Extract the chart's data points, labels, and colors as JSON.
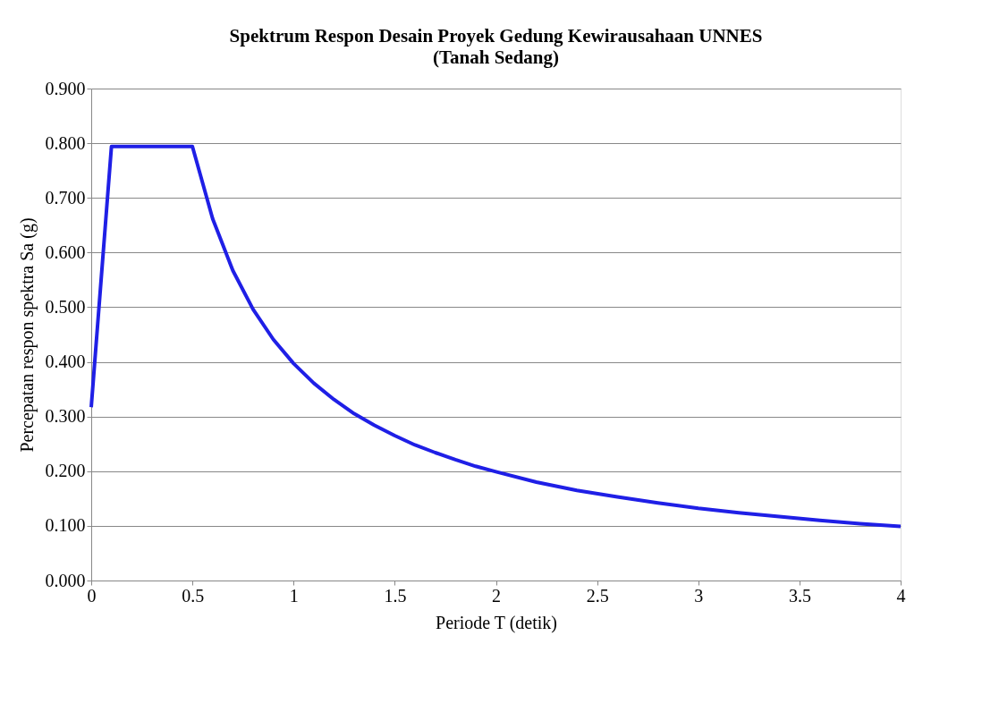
{
  "chart_data": {
    "type": "line",
    "title": "Spektrum Respon Desain Proyek Gedung Kewirausahaan UNNES",
    "subtitle": "(Tanah Sedang)",
    "xlabel": "Periode  T (detik)",
    "ylabel": "Percepatan respon spektra Sa (g)",
    "x": [
      0,
      0.1,
      0.5,
      0.6,
      0.7,
      0.8,
      0.9,
      1.0,
      1.1,
      1.2,
      1.3,
      1.4,
      1.5,
      1.6,
      1.7,
      1.8,
      1.9,
      2.0,
      2.2,
      2.4,
      2.6,
      2.8,
      3.0,
      3.2,
      3.4,
      3.6,
      3.8,
      4.0
    ],
    "series": [
      {
        "color": "#1f1fe6",
        "values": [
          0.317,
          0.794,
          0.794,
          0.662,
          0.567,
          0.496,
          0.441,
          0.397,
          0.361,
          0.331,
          0.305,
          0.284,
          0.265,
          0.248,
          0.234,
          0.221,
          0.209,
          0.199,
          0.18,
          0.165,
          0.153,
          0.142,
          0.132,
          0.124,
          0.117,
          0.11,
          0.104,
          0.099
        ]
      }
    ],
    "xlim": [
      0,
      4
    ],
    "xticks": [
      0,
      0.5,
      1,
      1.5,
      2,
      2.5,
      3,
      3.5,
      4
    ],
    "ylim": [
      0,
      0.9
    ],
    "yticks": [
      {
        "value": 0,
        "label": "0.000"
      },
      {
        "value": 0.1,
        "label": "0.100"
      },
      {
        "value": 0.2,
        "label": "0.200"
      },
      {
        "value": 0.3,
        "label": "0.300"
      },
      {
        "value": 0.4,
        "label": "0.400"
      },
      {
        "value": 0.5,
        "label": "0.500"
      },
      {
        "value": 0.6,
        "label": "0.600"
      },
      {
        "value": 0.7,
        "label": "0.700"
      },
      {
        "value": 0.8,
        "label": "0.800"
      },
      {
        "value": 0.9,
        "label": "0.900"
      }
    ],
    "grid": "y",
    "line_style": "solid",
    "marker": "none"
  }
}
